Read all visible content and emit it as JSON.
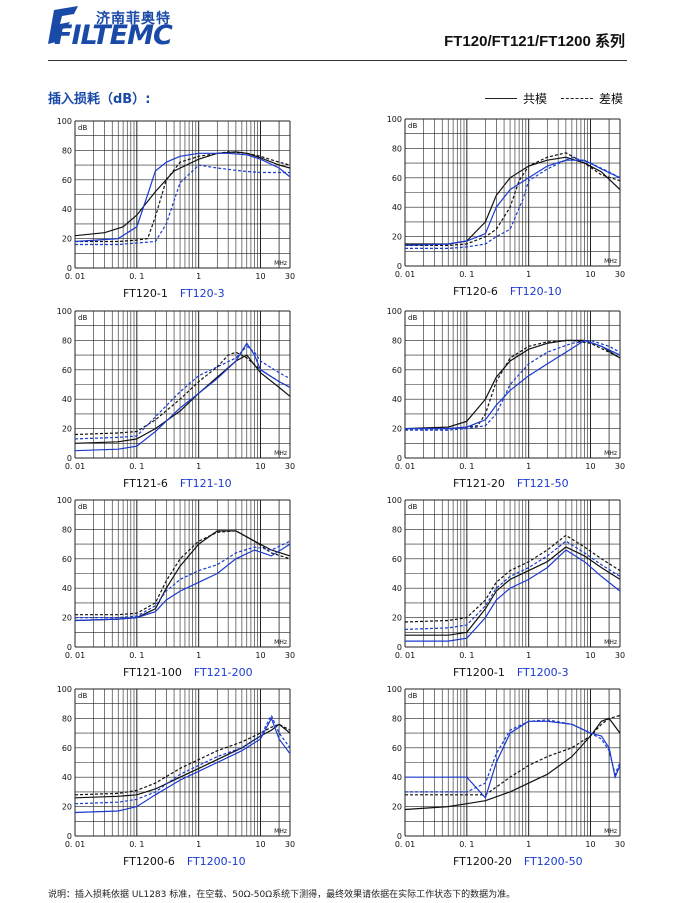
{
  "header": {
    "logo_cn": "济南菲奥特",
    "logo_en": "FILTEMC",
    "series_title": "FT120/FT121/FT1200 系列"
  },
  "section": {
    "title": "插入损耗（dB）:",
    "legend_common": "共模",
    "legend_diff": "差模"
  },
  "footnote": "说明：插入损耗依据 UL1283 标准，在空载、50Ω-50Ω系统下测得，最终效果请依据在实际工作状态下的数据为准。",
  "colors": {
    "black": "#111111",
    "blue": "#1a3ad0",
    "grid": "#222222"
  },
  "axis": {
    "ticks_y": [
      "0",
      "20",
      "40",
      "60",
      "80",
      "100"
    ],
    "ticks_x": [
      "0. 01",
      "0. 1",
      "1",
      "10",
      "30"
    ],
    "unit_y": "dB",
    "unit_x": "MHz"
  },
  "chart_data": [
    {
      "type": "line",
      "label_black": "FT120-1",
      "label_blue": "FT120-3",
      "xlim": [
        0.01,
        30
      ],
      "ylim": [
        0,
        100
      ],
      "series": [
        {
          "color": "black",
          "style": "solid",
          "x": [
            0.01,
            0.03,
            0.06,
            0.1,
            0.2,
            0.4,
            1,
            2,
            4,
            6,
            10,
            20,
            30
          ],
          "y": [
            22,
            24,
            28,
            36,
            52,
            66,
            74,
            78,
            79,
            78,
            75,
            70,
            68
          ]
        },
        {
          "color": "black",
          "style": "dashed",
          "x": [
            0.01,
            0.05,
            0.1,
            0.15,
            0.2,
            0.3,
            0.5,
            1,
            3,
            6,
            10,
            20,
            30
          ],
          "y": [
            18,
            18,
            19,
            20,
            35,
            60,
            72,
            76,
            79,
            78,
            76,
            72,
            70
          ]
        },
        {
          "color": "blue",
          "style": "solid",
          "x": [
            0.01,
            0.05,
            0.1,
            0.15,
            0.2,
            0.3,
            0.5,
            1,
            3,
            6,
            10,
            20,
            30
          ],
          "y": [
            18,
            20,
            28,
            50,
            66,
            72,
            76,
            78,
            78,
            77,
            74,
            68,
            62
          ]
        },
        {
          "color": "blue",
          "style": "dashed",
          "x": [
            0.01,
            0.05,
            0.1,
            0.2,
            0.3,
            0.5,
            1,
            2,
            5,
            10,
            20,
            30
          ],
          "y": [
            16,
            16,
            17,
            18,
            30,
            58,
            70,
            68,
            66,
            65,
            65,
            65
          ]
        }
      ]
    },
    {
      "type": "line",
      "label_black": "FT120-6",
      "label_blue": "FT120-10",
      "xlim": [
        0.01,
        30
      ],
      "ylim": [
        0,
        100
      ],
      "series": [
        {
          "color": "black",
          "style": "solid",
          "x": [
            0.01,
            0.05,
            0.1,
            0.2,
            0.3,
            0.5,
            1,
            2,
            4,
            8,
            15,
            30
          ],
          "y": [
            15,
            15,
            17,
            30,
            48,
            60,
            68,
            72,
            74,
            70,
            64,
            52
          ]
        },
        {
          "color": "black",
          "style": "dashed",
          "x": [
            0.01,
            0.05,
            0.1,
            0.2,
            0.3,
            0.5,
            0.7,
            1,
            2,
            4,
            8,
            15,
            30
          ],
          "y": [
            14,
            14,
            15,
            20,
            25,
            40,
            58,
            68,
            74,
            77,
            70,
            62,
            58
          ]
        },
        {
          "color": "blue",
          "style": "solid",
          "x": [
            0.01,
            0.05,
            0.1,
            0.2,
            0.3,
            0.5,
            1,
            2,
            4,
            8,
            15,
            30
          ],
          "y": [
            14,
            15,
            17,
            22,
            40,
            52,
            60,
            68,
            72,
            72,
            66,
            60
          ]
        },
        {
          "color": "blue",
          "style": "dashed",
          "x": [
            0.01,
            0.05,
            0.1,
            0.2,
            0.3,
            0.5,
            0.8,
            1,
            2,
            5,
            10,
            20,
            30
          ],
          "y": [
            12,
            12,
            13,
            15,
            20,
            25,
            45,
            58,
            66,
            74,
            70,
            64,
            60
          ]
        }
      ]
    },
    {
      "type": "line",
      "label_black": "FT121-6",
      "label_blue": "FT121-10",
      "xlim": [
        0.01,
        30
      ],
      "ylim": [
        0,
        100
      ],
      "series": [
        {
          "color": "black",
          "style": "solid",
          "x": [
            0.01,
            0.05,
            0.1,
            0.2,
            0.5,
            1,
            2,
            4,
            6,
            10,
            20,
            30
          ],
          "y": [
            10,
            11,
            13,
            20,
            32,
            44,
            55,
            66,
            70,
            58,
            48,
            42
          ]
        },
        {
          "color": "black",
          "style": "dashed",
          "x": [
            0.01,
            0.05,
            0.1,
            0.2,
            0.5,
            1,
            2,
            3,
            4,
            6,
            10,
            20,
            30
          ],
          "y": [
            16,
            17,
            18,
            26,
            40,
            52,
            62,
            70,
            72,
            68,
            60,
            52,
            48
          ]
        },
        {
          "color": "blue",
          "style": "solid",
          "x": [
            0.01,
            0.05,
            0.1,
            0.2,
            0.5,
            1,
            2,
            4,
            6,
            8,
            10,
            20,
            30
          ],
          "y": [
            5,
            6,
            8,
            18,
            34,
            44,
            54,
            66,
            78,
            70,
            60,
            52,
            48
          ]
        },
        {
          "color": "blue",
          "style": "dashed",
          "x": [
            0.01,
            0.05,
            0.1,
            0.2,
            0.5,
            1,
            2,
            4,
            6,
            8,
            10,
            20,
            30
          ],
          "y": [
            13,
            14,
            15,
            28,
            45,
            56,
            62,
            68,
            76,
            72,
            66,
            58,
            54
          ]
        }
      ]
    },
    {
      "type": "line",
      "label_black": "FT121-20",
      "label_blue": "FT121-50",
      "xlim": [
        0.01,
        30
      ],
      "ylim": [
        0,
        100
      ],
      "series": [
        {
          "color": "black",
          "style": "solid",
          "x": [
            0.01,
            0.05,
            0.1,
            0.2,
            0.3,
            0.5,
            1,
            2,
            4,
            8,
            15,
            30
          ],
          "y": [
            20,
            21,
            25,
            40,
            55,
            66,
            74,
            78,
            80,
            80,
            76,
            68
          ]
        },
        {
          "color": "black",
          "style": "dashed",
          "x": [
            0.01,
            0.05,
            0.1,
            0.15,
            0.2,
            0.3,
            0.5,
            1,
            2,
            5,
            10,
            20,
            30
          ],
          "y": [
            20,
            20,
            21,
            22,
            30,
            52,
            68,
            76,
            79,
            80,
            78,
            72,
            68
          ]
        },
        {
          "color": "blue",
          "style": "solid",
          "x": [
            0.01,
            0.05,
            0.1,
            0.2,
            0.3,
            0.5,
            1,
            2,
            4,
            8,
            15,
            30
          ],
          "y": [
            20,
            20,
            21,
            26,
            36,
            46,
            56,
            64,
            72,
            80,
            76,
            70
          ]
        },
        {
          "color": "blue",
          "style": "dashed",
          "x": [
            0.01,
            0.05,
            0.1,
            0.2,
            0.3,
            0.5,
            1,
            2,
            5,
            10,
            20,
            30
          ],
          "y": [
            19,
            19,
            20,
            22,
            30,
            50,
            64,
            72,
            78,
            80,
            76,
            72
          ]
        }
      ]
    },
    {
      "type": "line",
      "label_black": "FT121-100",
      "label_blue": "FT121-200",
      "xlim": [
        0.01,
        30
      ],
      "ylim": [
        0,
        100
      ],
      "series": [
        {
          "color": "black",
          "style": "solid",
          "x": [
            0.01,
            0.05,
            0.1,
            0.2,
            0.3,
            0.5,
            1,
            2,
            4,
            8,
            15,
            30
          ],
          "y": [
            18,
            19,
            20,
            26,
            40,
            55,
            70,
            79,
            79,
            72,
            66,
            62
          ]
        },
        {
          "color": "black",
          "style": "dashed",
          "x": [
            0.01,
            0.05,
            0.1,
            0.2,
            0.3,
            0.5,
            1,
            2,
            4,
            8,
            15,
            30
          ],
          "y": [
            22,
            22,
            23,
            30,
            45,
            60,
            72,
            78,
            79,
            72,
            64,
            60
          ]
        },
        {
          "color": "blue",
          "style": "solid",
          "x": [
            0.01,
            0.05,
            0.1,
            0.2,
            0.3,
            0.5,
            1,
            2,
            4,
            8,
            15,
            30
          ],
          "y": [
            18,
            19,
            20,
            24,
            32,
            38,
            44,
            50,
            60,
            66,
            62,
            70
          ]
        },
        {
          "color": "blue",
          "style": "dashed",
          "x": [
            0.01,
            0.05,
            0.1,
            0.2,
            0.3,
            0.5,
            1,
            2,
            4,
            8,
            15,
            30
          ],
          "y": [
            20,
            20,
            21,
            28,
            38,
            46,
            52,
            56,
            64,
            68,
            66,
            72
          ]
        }
      ]
    },
    {
      "type": "line",
      "label_black": "FT1200-1",
      "label_blue": "FT1200-3",
      "xlim": [
        0.01,
        30
      ],
      "ylim": [
        0,
        100
      ],
      "series": [
        {
          "color": "black",
          "style": "solid",
          "x": [
            0.01,
            0.05,
            0.1,
            0.2,
            0.3,
            0.5,
            1,
            2,
            4,
            8,
            15,
            30
          ],
          "y": [
            8,
            8,
            10,
            26,
            38,
            46,
            52,
            58,
            68,
            62,
            54,
            46
          ]
        },
        {
          "color": "black",
          "style": "dashed",
          "x": [
            0.01,
            0.05,
            0.1,
            0.2,
            0.3,
            0.5,
            1,
            2,
            4,
            8,
            15,
            30
          ],
          "y": [
            17,
            18,
            20,
            32,
            44,
            52,
            58,
            66,
            76,
            68,
            60,
            52
          ]
        },
        {
          "color": "blue",
          "style": "solid",
          "x": [
            0.01,
            0.05,
            0.1,
            0.2,
            0.3,
            0.5,
            1,
            2,
            4,
            8,
            15,
            30
          ],
          "y": [
            4,
            4,
            6,
            20,
            32,
            40,
            46,
            54,
            66,
            58,
            48,
            38
          ]
        },
        {
          "color": "blue",
          "style": "dashed",
          "x": [
            0.01,
            0.05,
            0.1,
            0.2,
            0.3,
            0.5,
            1,
            2,
            4,
            8,
            15,
            30
          ],
          "y": [
            12,
            13,
            15,
            28,
            40,
            48,
            54,
            62,
            72,
            64,
            56,
            48
          ]
        }
      ]
    },
    {
      "type": "line",
      "label_black": "FT1200-6",
      "label_blue": "FT1200-10",
      "xlim": [
        0.01,
        30
      ],
      "ylim": [
        0,
        100
      ],
      "series": [
        {
          "color": "black",
          "style": "solid",
          "x": [
            0.01,
            0.05,
            0.1,
            0.2,
            0.5,
            1,
            2,
            5,
            10,
            15,
            20,
            30
          ],
          "y": [
            26,
            27,
            28,
            32,
            40,
            46,
            52,
            60,
            68,
            72,
            76,
            70
          ]
        },
        {
          "color": "black",
          "style": "dashed",
          "x": [
            0.01,
            0.05,
            0.1,
            0.2,
            0.5,
            1,
            2,
            5,
            10,
            15,
            20,
            30
          ],
          "y": [
            28,
            29,
            31,
            36,
            46,
            52,
            58,
            64,
            70,
            74,
            76,
            72
          ]
        },
        {
          "color": "blue",
          "style": "solid",
          "x": [
            0.01,
            0.05,
            0.1,
            0.2,
            0.5,
            1,
            2,
            5,
            10,
            15,
            20,
            30
          ],
          "y": [
            16,
            17,
            20,
            28,
            38,
            44,
            50,
            58,
            66,
            80,
            66,
            56
          ]
        },
        {
          "color": "blue",
          "style": "dashed",
          "x": [
            0.01,
            0.05,
            0.1,
            0.2,
            0.5,
            1,
            2,
            5,
            10,
            15,
            20,
            30
          ],
          "y": [
            22,
            23,
            25,
            30,
            42,
            48,
            54,
            60,
            68,
            82,
            70,
            60
          ]
        }
      ]
    },
    {
      "type": "line",
      "label_black": "FT1200-20",
      "label_blue": "FT1200-50",
      "xlim": [
        0.01,
        30
      ],
      "ylim": [
        0,
        100
      ],
      "series": [
        {
          "color": "black",
          "style": "solid",
          "x": [
            0.01,
            0.05,
            0.1,
            0.2,
            0.5,
            1,
            2,
            5,
            10,
            15,
            20,
            30
          ],
          "y": [
            18,
            20,
            22,
            24,
            30,
            36,
            42,
            54,
            68,
            78,
            80,
            70
          ]
        },
        {
          "color": "black",
          "style": "dashed",
          "x": [
            0.01,
            0.05,
            0.1,
            0.2,
            0.5,
            1,
            2,
            5,
            10,
            15,
            20,
            30
          ],
          "y": [
            28,
            28,
            28,
            28,
            40,
            48,
            54,
            60,
            68,
            76,
            80,
            82
          ]
        },
        {
          "color": "blue",
          "style": "solid",
          "x": [
            0.01,
            0.05,
            0.1,
            0.2,
            0.3,
            0.5,
            1,
            2,
            5,
            10,
            15,
            20,
            25,
            30
          ],
          "y": [
            40,
            40,
            40,
            26,
            50,
            70,
            78,
            78,
            76,
            70,
            68,
            60,
            40,
            48
          ]
        },
        {
          "color": "blue",
          "style": "dashed",
          "x": [
            0.01,
            0.05,
            0.1,
            0.2,
            0.3,
            0.5,
            1,
            2,
            5,
            10,
            15,
            20,
            25,
            30
          ],
          "y": [
            30,
            30,
            30,
            36,
            56,
            72,
            78,
            79,
            76,
            70,
            66,
            58,
            42,
            50
          ]
        }
      ]
    }
  ]
}
